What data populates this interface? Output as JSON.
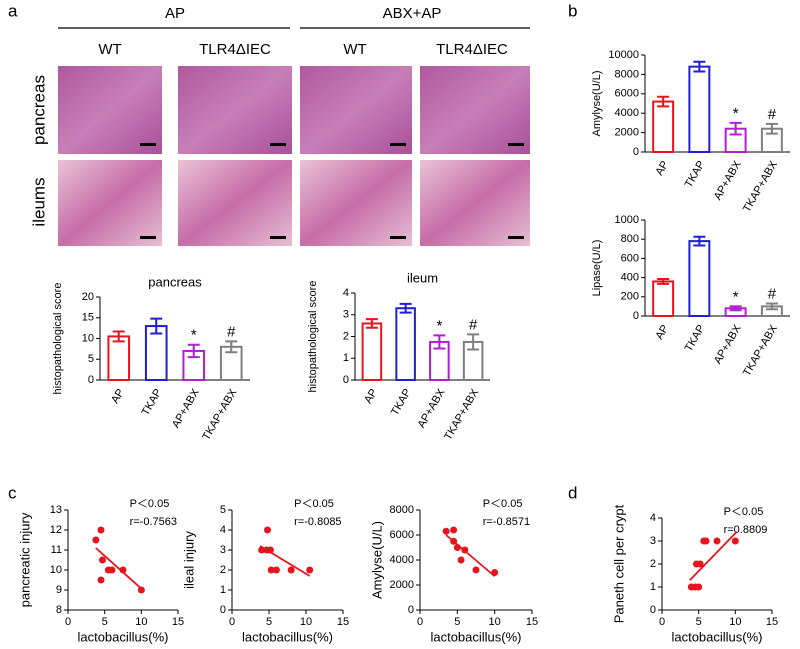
{
  "figure": {
    "panels": [
      "a",
      "b",
      "c",
      "d"
    ],
    "groups": [
      "AP",
      "ABX+AP"
    ],
    "genotypes": [
      "WT",
      "TLR4ΔIEC",
      "WT",
      "TLR4ΔIEC"
    ],
    "tissues": [
      "pancreas",
      "ileums"
    ]
  },
  "chart_data": [
    {
      "type": "bar",
      "title": "pancreas",
      "ylabel": "histopathological score",
      "categories": [
        "AP",
        "TKAP",
        "AP+ABX",
        "TKAP+ABX"
      ],
      "values": [
        10.5,
        13,
        7,
        8
      ],
      "errors": [
        1.2,
        1.8,
        1.5,
        1.3
      ],
      "colors": [
        "#e8141b",
        "#1f1fd6",
        "#b01fd0",
        "#7f7f7f"
      ],
      "significance": [
        null,
        null,
        "*",
        "#"
      ],
      "ylim": [
        0,
        20
      ],
      "yticks": [
        0,
        5,
        10,
        15,
        20
      ]
    },
    {
      "type": "bar",
      "title": "ileum",
      "ylabel": "histopathological score",
      "categories": [
        "AP",
        "TKAP",
        "AP+ABX",
        "TKAP+ABX"
      ],
      "values": [
        2.6,
        3.3,
        1.75,
        1.75
      ],
      "errors": [
        0.2,
        0.2,
        0.3,
        0.35
      ],
      "colors": [
        "#e8141b",
        "#1f1fd6",
        "#b01fd0",
        "#7f7f7f"
      ],
      "significance": [
        null,
        null,
        "*",
        "#"
      ],
      "ylim": [
        0,
        4
      ],
      "yticks": [
        0,
        1,
        2,
        3,
        4
      ]
    },
    {
      "type": "bar",
      "ylabel": "Amylyse(U/L)",
      "categories": [
        "AP",
        "TKAP",
        "AP+ABX",
        "TKAP+ABX"
      ],
      "values": [
        5200,
        8800,
        2400,
        2400
      ],
      "errors": [
        500,
        500,
        600,
        500
      ],
      "colors": [
        "#e8141b",
        "#1f1fd6",
        "#b01fd0",
        "#7f7f7f"
      ],
      "significance": [
        null,
        null,
        "*",
        "#"
      ],
      "ylim": [
        0,
        10000
      ],
      "yticks": [
        0,
        2000,
        4000,
        6000,
        8000,
        10000
      ]
    },
    {
      "type": "bar",
      "ylabel": "Lipase(U/L)",
      "categories": [
        "AP",
        "TKAP",
        "AP+ABX",
        "TKAP+ABX"
      ],
      "values": [
        360,
        780,
        80,
        100
      ],
      "errors": [
        25,
        45,
        20,
        30
      ],
      "colors": [
        "#e8141b",
        "#1f1fd6",
        "#b01fd0",
        "#7f7f7f"
      ],
      "significance": [
        null,
        null,
        "*",
        "#"
      ],
      "ylim": [
        0,
        1000
      ],
      "yticks": [
        0,
        200,
        400,
        600,
        800,
        1000
      ]
    },
    {
      "type": "scatter",
      "ylabel": "pancreatic injury",
      "xlabel": "lactobacillus(%)",
      "annotations": [
        "P＜0.05",
        "r=-0.7563"
      ],
      "color": "#e8141b",
      "x": [
        3.8,
        4.5,
        4.7,
        4.5,
        5.5,
        6,
        7.5,
        10
      ],
      "y": [
        11.5,
        12,
        10.5,
        9.5,
        10,
        10,
        10,
        9
      ],
      "fit": {
        "x": [
          3.8,
          10.2
        ],
        "y": [
          11.1,
          9.0
        ]
      },
      "xlim": [
        0,
        15
      ],
      "xticks": [
        0,
        5,
        10,
        15
      ],
      "ylim": [
        8,
        13
      ],
      "yticks": [
        8,
        9,
        10,
        11,
        12,
        13
      ]
    },
    {
      "type": "scatter",
      "ylabel": "ileal injury",
      "xlabel": "lactobacillus(%)",
      "annotations": [
        "P＜0.05",
        "r=-0.8085"
      ],
      "color": "#e8141b",
      "x": [
        4.8,
        4,
        4.7,
        5.2,
        5.3,
        6,
        8,
        10.5
      ],
      "y": [
        4,
        3,
        3,
        3,
        2,
        2,
        2,
        2
      ],
      "fit": {
        "x": [
          3.8,
          10.5
        ],
        "y": [
          3.2,
          1.7
        ]
      },
      "xlim": [
        0,
        15
      ],
      "xticks": [
        0,
        5,
        10,
        15
      ],
      "ylim": [
        0,
        5
      ],
      "yticks": [
        0,
        1,
        2,
        3,
        4,
        5
      ]
    },
    {
      "type": "scatter",
      "ylabel": "Amylyse(U/L)",
      "xlabel": "lactobacillus(%)",
      "annotations": [
        "P＜0.05",
        "r=-0.8571"
      ],
      "color": "#e8141b",
      "x": [
        3.5,
        4.5,
        4.5,
        5,
        5.5,
        6,
        7.5,
        10
      ],
      "y": [
        6300,
        6400,
        5500,
        5000,
        4000,
        4800,
        3200,
        3000
      ],
      "fit": {
        "x": [
          3.5,
          10
        ],
        "y": [
          6000,
          2700
        ]
      },
      "xlim": [
        0,
        15
      ],
      "xticks": [
        0,
        5,
        10,
        15
      ],
      "ylim": [
        0,
        8000
      ],
      "yticks": [
        0,
        2000,
        4000,
        6000,
        8000
      ]
    },
    {
      "type": "scatter",
      "ylabel": "Paneth cell per crypt",
      "xlabel": "lactobacillus(%)",
      "annotations": [
        "P＜0.05",
        "r=0.8809"
      ],
      "color": "#e8141b",
      "x": [
        4,
        4.5,
        5,
        4.7,
        5.2,
        5.7,
        6,
        7.5,
        10
      ],
      "y": [
        1,
        1,
        1,
        2,
        2,
        3,
        3,
        3,
        3
      ],
      "fit": {
        "x": [
          3.8,
          10.2
        ],
        "y": [
          1.3,
          3.4
        ]
      },
      "xlim": [
        0,
        15
      ],
      "xticks": [
        0,
        5,
        10,
        15
      ],
      "ylim": [
        0,
        4
      ],
      "yticks": [
        0,
        1,
        2,
        3,
        4
      ]
    }
  ]
}
